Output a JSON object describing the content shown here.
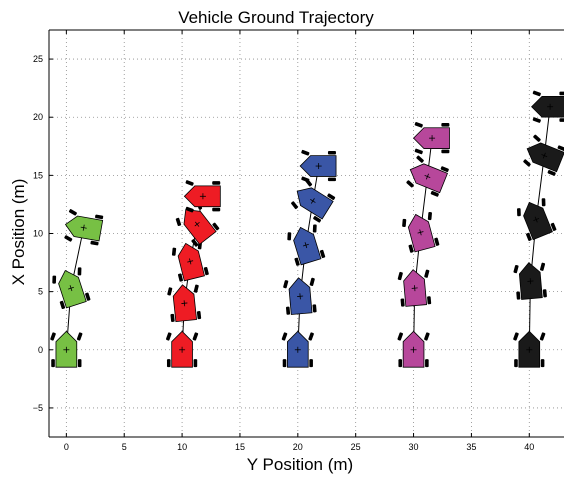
{
  "chart_data": {
    "type": "scatter",
    "title": "Vehicle Ground Trajectory",
    "xlabel": "Y Position (m)",
    "ylabel": "X Position (m)",
    "xlim": [
      -1.5,
      43
    ],
    "ylim": [
      -7.5,
      27.5
    ],
    "xticks": [
      0,
      5,
      10,
      15,
      20,
      25,
      30,
      35,
      40
    ],
    "yticks": [
      -5,
      0,
      5,
      10,
      15,
      20,
      25
    ],
    "grid": true,
    "series": [
      {
        "color": "#77c044",
        "vehicles": [
          {
            "x": 0.0,
            "y": 0.0,
            "heading": 0
          },
          {
            "x": 0.4,
            "y": 5.3,
            "heading": -18
          },
          {
            "x": 1.5,
            "y": 10.5,
            "heading": -80
          }
        ],
        "path": [
          [
            0.0,
            0.0
          ],
          [
            0.4,
            5.3
          ],
          [
            1.5,
            10.5
          ]
        ]
      },
      {
        "color": "#ee1c24",
        "vehicles": [
          {
            "x": 10.0,
            "y": 0.0,
            "heading": 0
          },
          {
            "x": 10.2,
            "y": 4.0,
            "heading": -6
          },
          {
            "x": 10.7,
            "y": 7.6,
            "heading": -14
          },
          {
            "x": 11.3,
            "y": 10.8,
            "heading": -38
          },
          {
            "x": 11.8,
            "y": 13.2,
            "heading": -90
          }
        ],
        "path": [
          [
            10.0,
            0.0
          ],
          [
            10.2,
            4.0
          ],
          [
            10.7,
            7.6
          ],
          [
            11.3,
            10.8
          ],
          [
            11.8,
            13.2
          ]
        ]
      },
      {
        "color": "#3a56a6",
        "vehicles": [
          {
            "x": 20.0,
            "y": 0.0,
            "heading": 0
          },
          {
            "x": 20.2,
            "y": 4.6,
            "heading": -5
          },
          {
            "x": 20.7,
            "y": 9.0,
            "heading": -17
          },
          {
            "x": 21.3,
            "y": 12.8,
            "heading": -58
          },
          {
            "x": 21.8,
            "y": 15.8,
            "heading": -90
          }
        ],
        "path": [
          [
            20.0,
            0.0
          ],
          [
            20.2,
            4.6
          ],
          [
            20.7,
            9.0
          ],
          [
            21.3,
            12.8
          ],
          [
            21.8,
            15.8
          ]
        ]
      },
      {
        "color": "#b7479b",
        "vehicles": [
          {
            "x": 30.0,
            "y": 0.0,
            "heading": 0
          },
          {
            "x": 30.1,
            "y": 5.3,
            "heading": -5
          },
          {
            "x": 30.6,
            "y": 10.1,
            "heading": -15
          },
          {
            "x": 31.2,
            "y": 14.9,
            "heading": -68
          },
          {
            "x": 31.6,
            "y": 18.2,
            "heading": -90
          }
        ],
        "path": [
          [
            30.0,
            0.0
          ],
          [
            30.1,
            5.3
          ],
          [
            30.6,
            10.1
          ],
          [
            31.2,
            14.9
          ],
          [
            31.6,
            18.2
          ]
        ]
      },
      {
        "color": "#1a1a1a",
        "vehicles": [
          {
            "x": 40.0,
            "y": 0.0,
            "heading": 0
          },
          {
            "x": 40.1,
            "y": 5.9,
            "heading": -5
          },
          {
            "x": 40.6,
            "y": 11.2,
            "heading": -22
          },
          {
            "x": 41.3,
            "y": 16.7,
            "heading": -68
          },
          {
            "x": 41.8,
            "y": 20.9,
            "heading": -90
          }
        ],
        "path": [
          [
            40.0,
            0.0
          ],
          [
            40.1,
            5.9
          ],
          [
            40.6,
            11.2
          ],
          [
            41.3,
            16.7
          ],
          [
            41.8,
            20.9
          ]
        ]
      }
    ]
  }
}
